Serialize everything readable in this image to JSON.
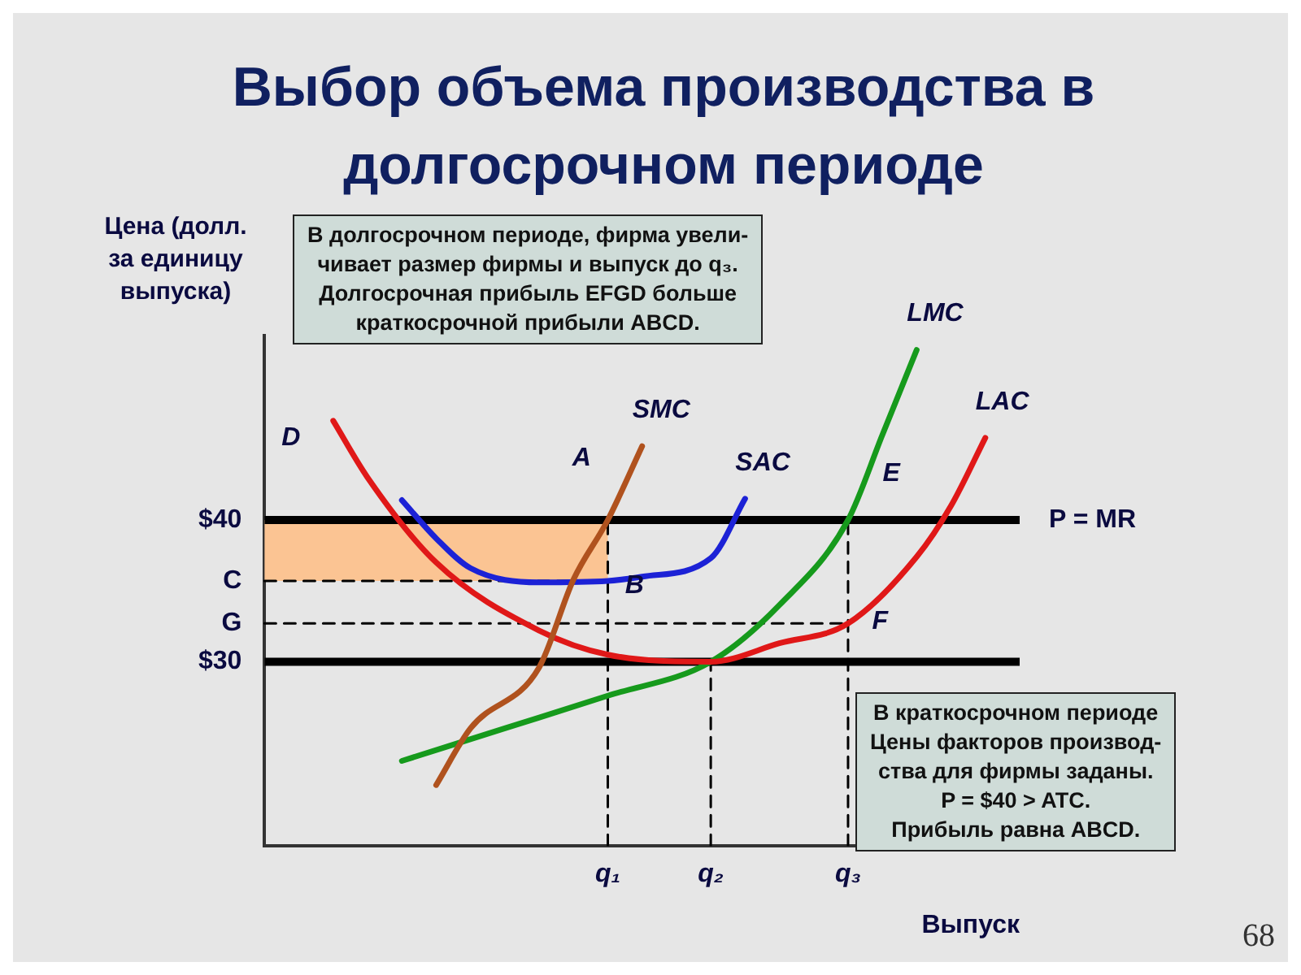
{
  "chart_data": {
    "type": "line",
    "title": "Выбор объема производства в долгосрочном периоде",
    "ylabel": "Цена (долл. за единицу выпуска)",
    "xlabel": "Выпуск",
    "ylim": [
      17,
      53
    ],
    "categories": [
      null,
      null,
      null,
      null,
      null,
      null,
      null,
      null,
      null,
      null,
      "q₁",
      null,
      null,
      "q₂",
      null,
      null,
      null,
      "q₃",
      null,
      null,
      null,
      null,
      null
    ],
    "yticks": [
      {
        "value": 40,
        "label": "$40"
      },
      {
        "value": 35.7,
        "label": "C"
      },
      {
        "value": 32.7,
        "label": "G"
      },
      {
        "value": 30,
        "label": "$30"
      }
    ],
    "series": [
      {
        "name": "SMC",
        "color": "#b0521e",
        "values": [
          null,
          null,
          null,
          null,
          null,
          21.3,
          25.3,
          null,
          29.6,
          35.8,
          40,
          45.2,
          null,
          null,
          null,
          null,
          null,
          null,
          null,
          null,
          null,
          null,
          null
        ]
      },
      {
        "name": "SAC",
        "color": "#1c22d6",
        "values": [
          null,
          null,
          null,
          null,
          41.4,
          38.7,
          36.6,
          null,
          35.6,
          null,
          35.7,
          36.0,
          null,
          37.3,
          41.5,
          null,
          null,
          null,
          null,
          null,
          null,
          null,
          null
        ]
      },
      {
        "name": "LAC",
        "color": "#e01818",
        "values": [
          null,
          null,
          47.0,
          43.0,
          null,
          37.0,
          null,
          null,
          32.2,
          null,
          30.5,
          null,
          null,
          30,
          null,
          31.3,
          null,
          32.7,
          null,
          37.4,
          41,
          45.8,
          null
        ]
      },
      {
        "name": "LMC",
        "color": "#169a1c",
        "values": [
          null,
          null,
          null,
          null,
          23.0,
          null,
          null,
          25.3,
          null,
          null,
          27.6,
          null,
          null,
          30,
          null,
          34,
          null,
          40,
          46,
          52,
          null,
          null,
          null
        ]
      },
      {
        "color": "#000000",
        "line_style": "dashed",
        "x": [
          "q₁",
          "q₁"
        ],
        "values": [
          17,
          40
        ]
      },
      {
        "color": "#000000",
        "line_style": "dashed",
        "x": [
          "q₂",
          "q₂"
        ],
        "values": [
          17,
          30
        ]
      },
      {
        "color": "#000000",
        "line_style": "dashed",
        "x": [
          "q₃",
          "q₃"
        ],
        "values": [
          17,
          40
        ]
      },
      {
        "color": "#000000",
        "line_style": "dashed",
        "values": [
          35.7,
          null,
          null,
          null,
          null,
          null,
          null,
          null,
          null,
          null,
          35.7,
          null,
          null,
          null,
          null,
          null,
          null,
          null,
          null,
          null,
          null,
          null,
          null
        ]
      },
      {
        "color": "#000000",
        "line_style": "dashed",
        "values": [
          32.7,
          null,
          null,
          null,
          null,
          null,
          null,
          null,
          null,
          null,
          null,
          null,
          null,
          null,
          null,
          null,
          null,
          32.7,
          null,
          null,
          null,
          null,
          null
        ]
      }
    ],
    "ref_lines": [
      {
        "axis": "y",
        "value": 40,
        "label": "P = MR",
        "color": "#000000"
      },
      {
        "axis": "y",
        "value": 30,
        "color": "#000000"
      }
    ],
    "bands": [
      {
        "axis": "y",
        "from": 35.7,
        "to": 40,
        "color": "#fbc493"
      }
    ],
    "annotations": [
      "В долгосрочном периоде, фирма увели-\nчивает размер фирмы и выпуск до q₃.\nДолгосрочная прибыль EFGD больше\nкраткосрочной прибыли ABCD.",
      "В краткосрочном периоде\nЦены факторов производ-\nства для фирмы заданы.\nP = $40 > ATC.\nПрибыль равна ABCD.",
      "68",
      "D",
      "A",
      "B",
      "E",
      "F"
    ],
    "grid": false,
    "legend": false,
    "marker": "none"
  }
}
